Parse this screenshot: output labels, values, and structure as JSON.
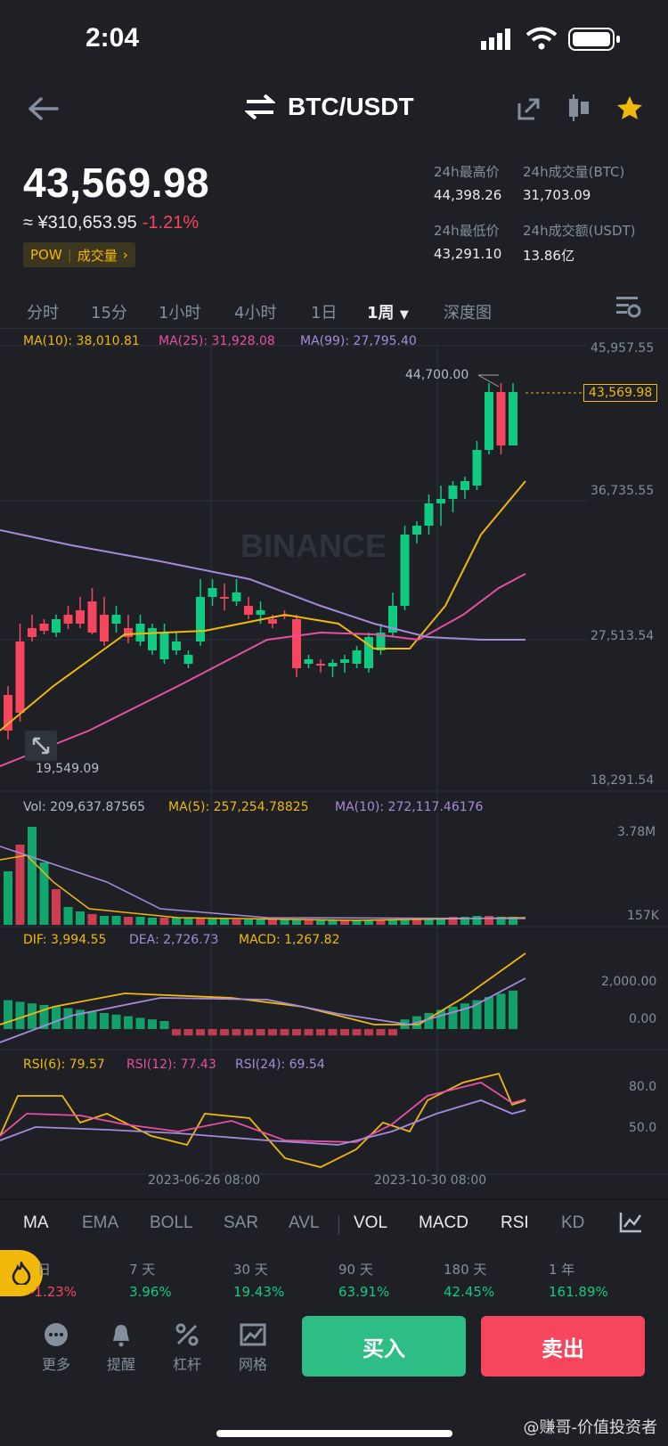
{
  "status": {
    "time": "2:04"
  },
  "header": {
    "pair": "BTC/USDT"
  },
  "price": {
    "last": "43,569.98",
    "cny": "≈ ¥310,653.95",
    "change": "-1.21%",
    "tag_pow": "POW",
    "tag_volume": "成交量"
  },
  "stats": {
    "high_label": "24h最高价",
    "high_value": "44,398.26",
    "vol_btc_label": "24h成交量(BTC)",
    "vol_btc_value": "31,703.09",
    "low_label": "24h最低价",
    "low_value": "43,291.10",
    "vol_usdt_label": "24h成交额(USDT)",
    "vol_usdt_value": "13.86亿"
  },
  "tabs": [
    "分时",
    "15分",
    "1小时",
    "4小时",
    "1日",
    "1周",
    "深度图"
  ],
  "active_tab": "1周",
  "chart": {
    "ma10": "MA(10): 38,010.81",
    "ma25": "MA(25): 31,928.08",
    "ma99": "MA(99): 27,795.40",
    "y_labels": [
      "45,957.55",
      "36,735.55",
      "27,513.54",
      "18,291.54"
    ],
    "high_marker": "44,700.00",
    "low_marker": "19,549.09",
    "current_price": "43,569.98",
    "watermark": "BINANCE",
    "vol": "Vol: 209,637.87565",
    "vol_ma5": "MA(5): 257,254.78825",
    "vol_ma10": "MA(10): 272,117.46176",
    "vol_y": [
      "3.78M",
      "157K"
    ],
    "dif": "DIF: 3,994.55",
    "dea": "DEA: 2,726.73",
    "macd": "MACD: 1,267.82",
    "macd_y": [
      "2,000.00",
      "0.00"
    ],
    "rsi6": "RSI(6): 79.57",
    "rsi12": "RSI(12): 77.43",
    "rsi24": "RSI(24): 69.54",
    "rsi_y": [
      "80.0",
      "50.0"
    ],
    "x_labels": [
      "2023-06-26 08:00",
      "2023-10-30 08:00"
    ]
  },
  "indicators": [
    "MA",
    "EMA",
    "BOLL",
    "SAR",
    "AVL",
    "VOL",
    "MACD",
    "RSI",
    "KD"
  ],
  "active_main": "MA",
  "active_sub": [
    "VOL",
    "MACD",
    "RSI"
  ],
  "performance": [
    {
      "label": "日",
      "value": "-1.23%"
    },
    {
      "label": "7 天",
      "value": "3.96%"
    },
    {
      "label": "30 天",
      "value": "19.43%"
    },
    {
      "label": "90 天",
      "value": "63.91%"
    },
    {
      "label": "180 天",
      "value": "42.45%"
    },
    {
      "label": "1 年",
      "value": "161.89%"
    }
  ],
  "bottom": {
    "more": "更多",
    "alert": "提醒",
    "leverage": "杠杆",
    "grid": "网格",
    "buy": "买入",
    "sell": "卖出"
  },
  "footer_watermark": "@赚哥-价值投资者",
  "colors": {
    "up": "#0ecb81",
    "down": "#f6465d",
    "accent": "#f0b90b",
    "bg": "#1e2026"
  }
}
